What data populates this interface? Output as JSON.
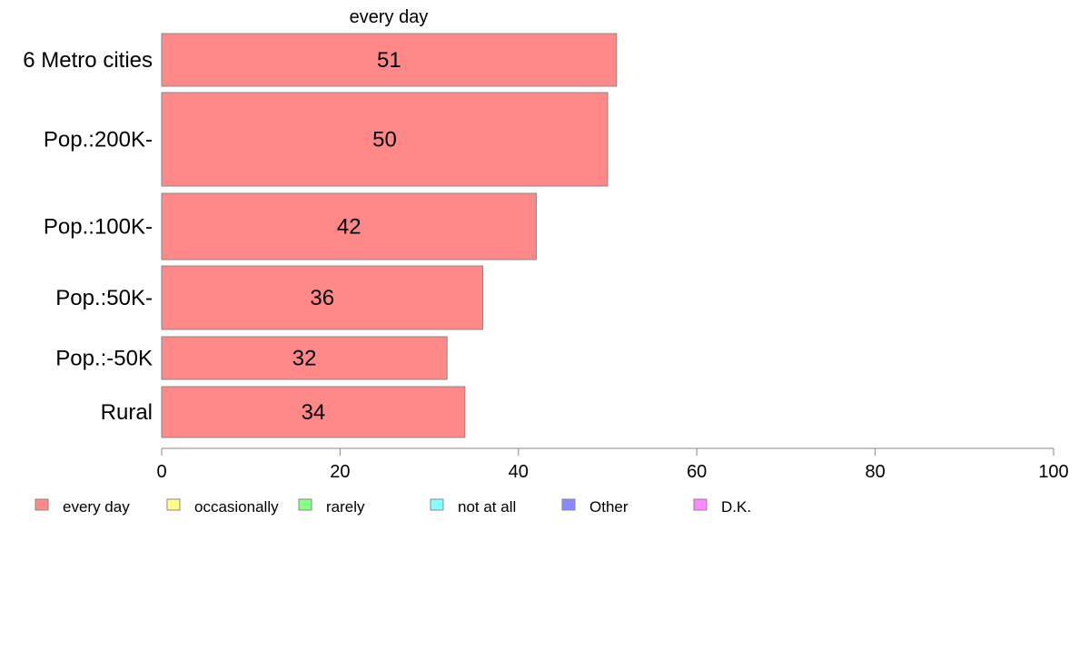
{
  "chart_data": {
    "type": "bar",
    "orientation": "horizontal",
    "title": "every day",
    "categories": [
      "6 Metro cities",
      "Pop.:200K-",
      "Pop.:100K-",
      "Pop.:50K-",
      "Pop.:-50K",
      "Rural"
    ],
    "series": [
      {
        "name": "every day",
        "values": [
          51,
          50,
          42,
          36,
          32,
          34
        ],
        "color": "#ff8888"
      }
    ],
    "data_labels": [
      "51",
      "50",
      "42",
      "36",
      "32",
      "34"
    ],
    "xlim": [
      0,
      100
    ],
    "xticks": [
      0,
      20,
      40,
      60,
      80,
      100
    ],
    "xtick_labels": [
      "0",
      "20",
      "40",
      "60",
      "80",
      "100"
    ],
    "grid": false,
    "legend": {
      "placement": "bottom-left",
      "entries": [
        {
          "label": "every day",
          "color": "#ff8888"
        },
        {
          "label": "occasionally",
          "color": "#ffff88"
        },
        {
          "label": "rarely",
          "color": "#88ff88"
        },
        {
          "label": "not at all",
          "color": "#88ffff"
        },
        {
          "label": "Other",
          "color": "#8888ff"
        },
        {
          "label": "D.K.",
          "color": "#ff88ff"
        }
      ]
    }
  }
}
